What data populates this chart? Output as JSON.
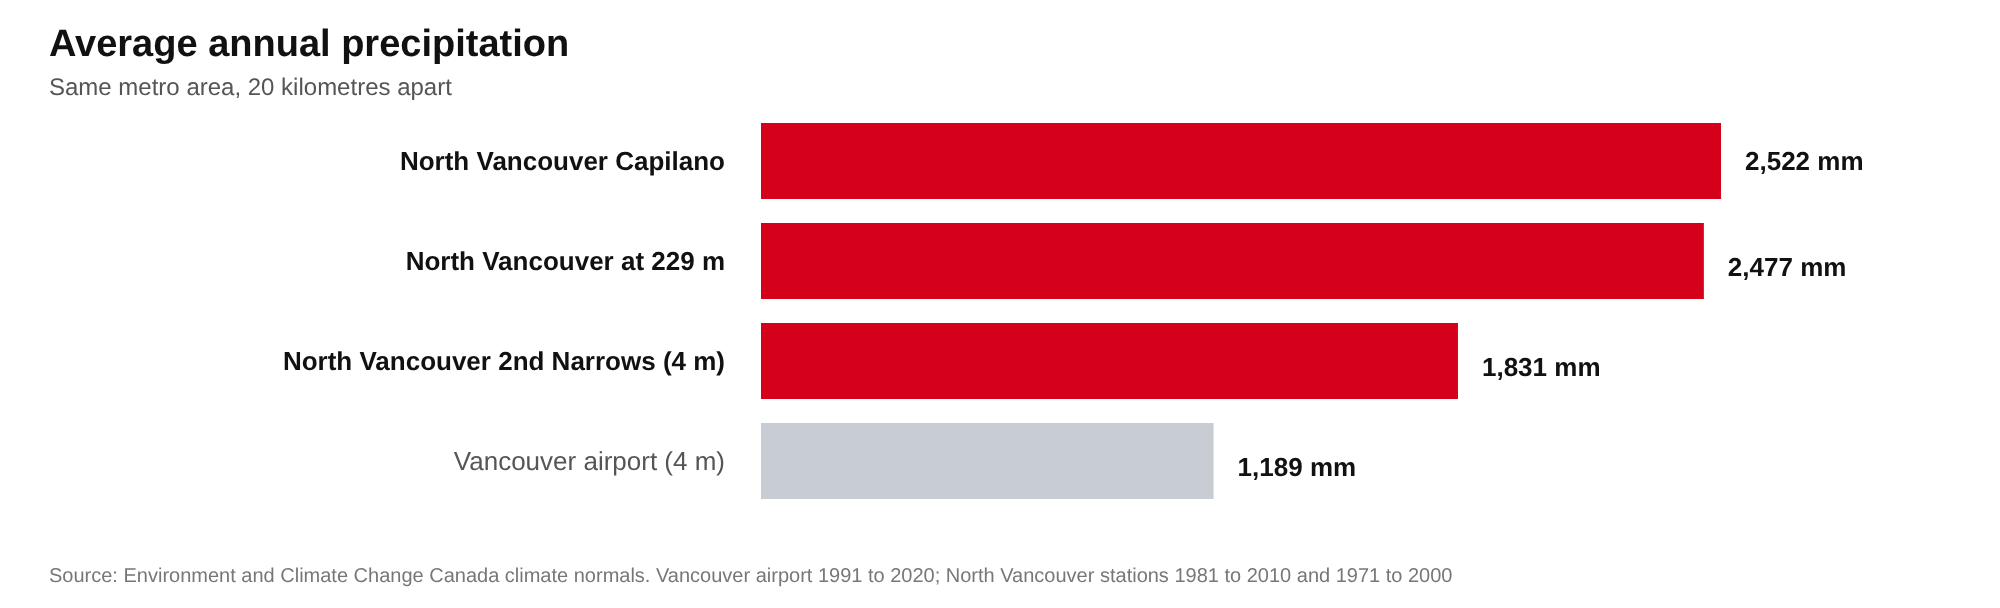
{
  "chart_data": {
    "type": "bar",
    "orientation": "horizontal",
    "title": "Average annual precipitation",
    "subtitle": "Same metro area, 20 kilometres apart",
    "categories": [
      "North Vancouver Capilano",
      "North Vancouver at 229 m",
      "North Vancouver 2nd Narrows (4 m)",
      "Vancouver airport (4 m)"
    ],
    "values": [
      2522,
      2477,
      1831,
      1189
    ],
    "colors": [
      "#d50019",
      "#d50019",
      "#d50019",
      "#c8ccd3"
    ],
    "value_labels": [
      "2,522 mm",
      "2,477 mm",
      "1,831 mm",
      "1,189 mm"
    ],
    "annotations": [
      "Source: Environment and Climate Change Canada climate normals. Vancouver airport 1991 to 2020; North Vancouver stations 1981 to 2010 and 1971 to 2000"
    ]
  }
}
